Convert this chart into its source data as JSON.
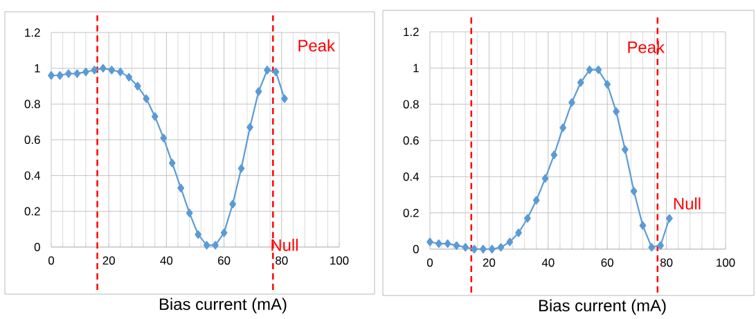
{
  "chart_data": [
    {
      "type": "line",
      "xlabel": "Bias current (mA)",
      "x": [
        0,
        3,
        6,
        9,
        12,
        15,
        18,
        21,
        24,
        27,
        30,
        33,
        36,
        39,
        42,
        45,
        48,
        51,
        54,
        57,
        60,
        63,
        66,
        69,
        72,
        75,
        78,
        81
      ],
      "series": [
        {
          "color": "#5b9bd5",
          "values": [
            0.96,
            0.96,
            0.97,
            0.97,
            0.98,
            0.99,
            1.0,
            0.99,
            0.98,
            0.95,
            0.9,
            0.83,
            0.73,
            0.61,
            0.47,
            0.33,
            0.19,
            0.07,
            0.01,
            0.01,
            0.08,
            0.24,
            0.44,
            0.67,
            0.87,
            0.99,
            0.98,
            0.83
          ]
        }
      ],
      "xlim": [
        0,
        100
      ],
      "xticks": [
        0,
        20,
        40,
        60,
        80,
        100
      ],
      "ylim": [
        0,
        1.2
      ],
      "yticks": [
        0,
        0.2,
        0.4,
        0.6,
        0.8,
        1,
        1.2
      ],
      "grid": true,
      "marker": "diamond",
      "line_style": "solid",
      "ref_lines": [
        {
          "axis": "x",
          "value": 16,
          "color": "#ff0000",
          "line_style": "dashed"
        },
        {
          "axis": "x",
          "value": 77,
          "color": "#ff0000",
          "line_style": "dashed"
        }
      ],
      "annotations": [
        "Peak",
        "Null"
      ]
    },
    {
      "type": "line",
      "xlabel": "Bias current (mA)",
      "x": [
        0,
        3,
        6,
        9,
        12,
        15,
        18,
        21,
        24,
        27,
        30,
        33,
        36,
        39,
        42,
        45,
        48,
        51,
        54,
        57,
        60,
        63,
        66,
        69,
        72,
        75,
        78,
        81
      ],
      "series": [
        {
          "color": "#5b9bd5",
          "values": [
            0.04,
            0.03,
            0.03,
            0.02,
            0.01,
            0.0,
            0.0,
            0.0,
            0.01,
            0.04,
            0.09,
            0.17,
            0.27,
            0.39,
            0.52,
            0.67,
            0.81,
            0.92,
            0.99,
            0.99,
            0.91,
            0.76,
            0.55,
            0.32,
            0.13,
            0.01,
            0.02,
            0.17
          ]
        }
      ],
      "xlim": [
        0,
        100
      ],
      "xticks": [
        0,
        20,
        40,
        60,
        80,
        100
      ],
      "ylim": [
        0,
        1.2
      ],
      "yticks": [
        0,
        0.2,
        0.4,
        0.6,
        0.8,
        1,
        1.2
      ],
      "grid": true,
      "marker": "diamond",
      "line_style": "solid",
      "ref_lines": [
        {
          "axis": "x",
          "value": 14,
          "color": "#ff0000",
          "line_style": "dashed"
        },
        {
          "axis": "x",
          "value": 77,
          "color": "#ff0000",
          "line_style": "dashed"
        }
      ],
      "annotations": [
        "Peak",
        "Null"
      ]
    }
  ]
}
